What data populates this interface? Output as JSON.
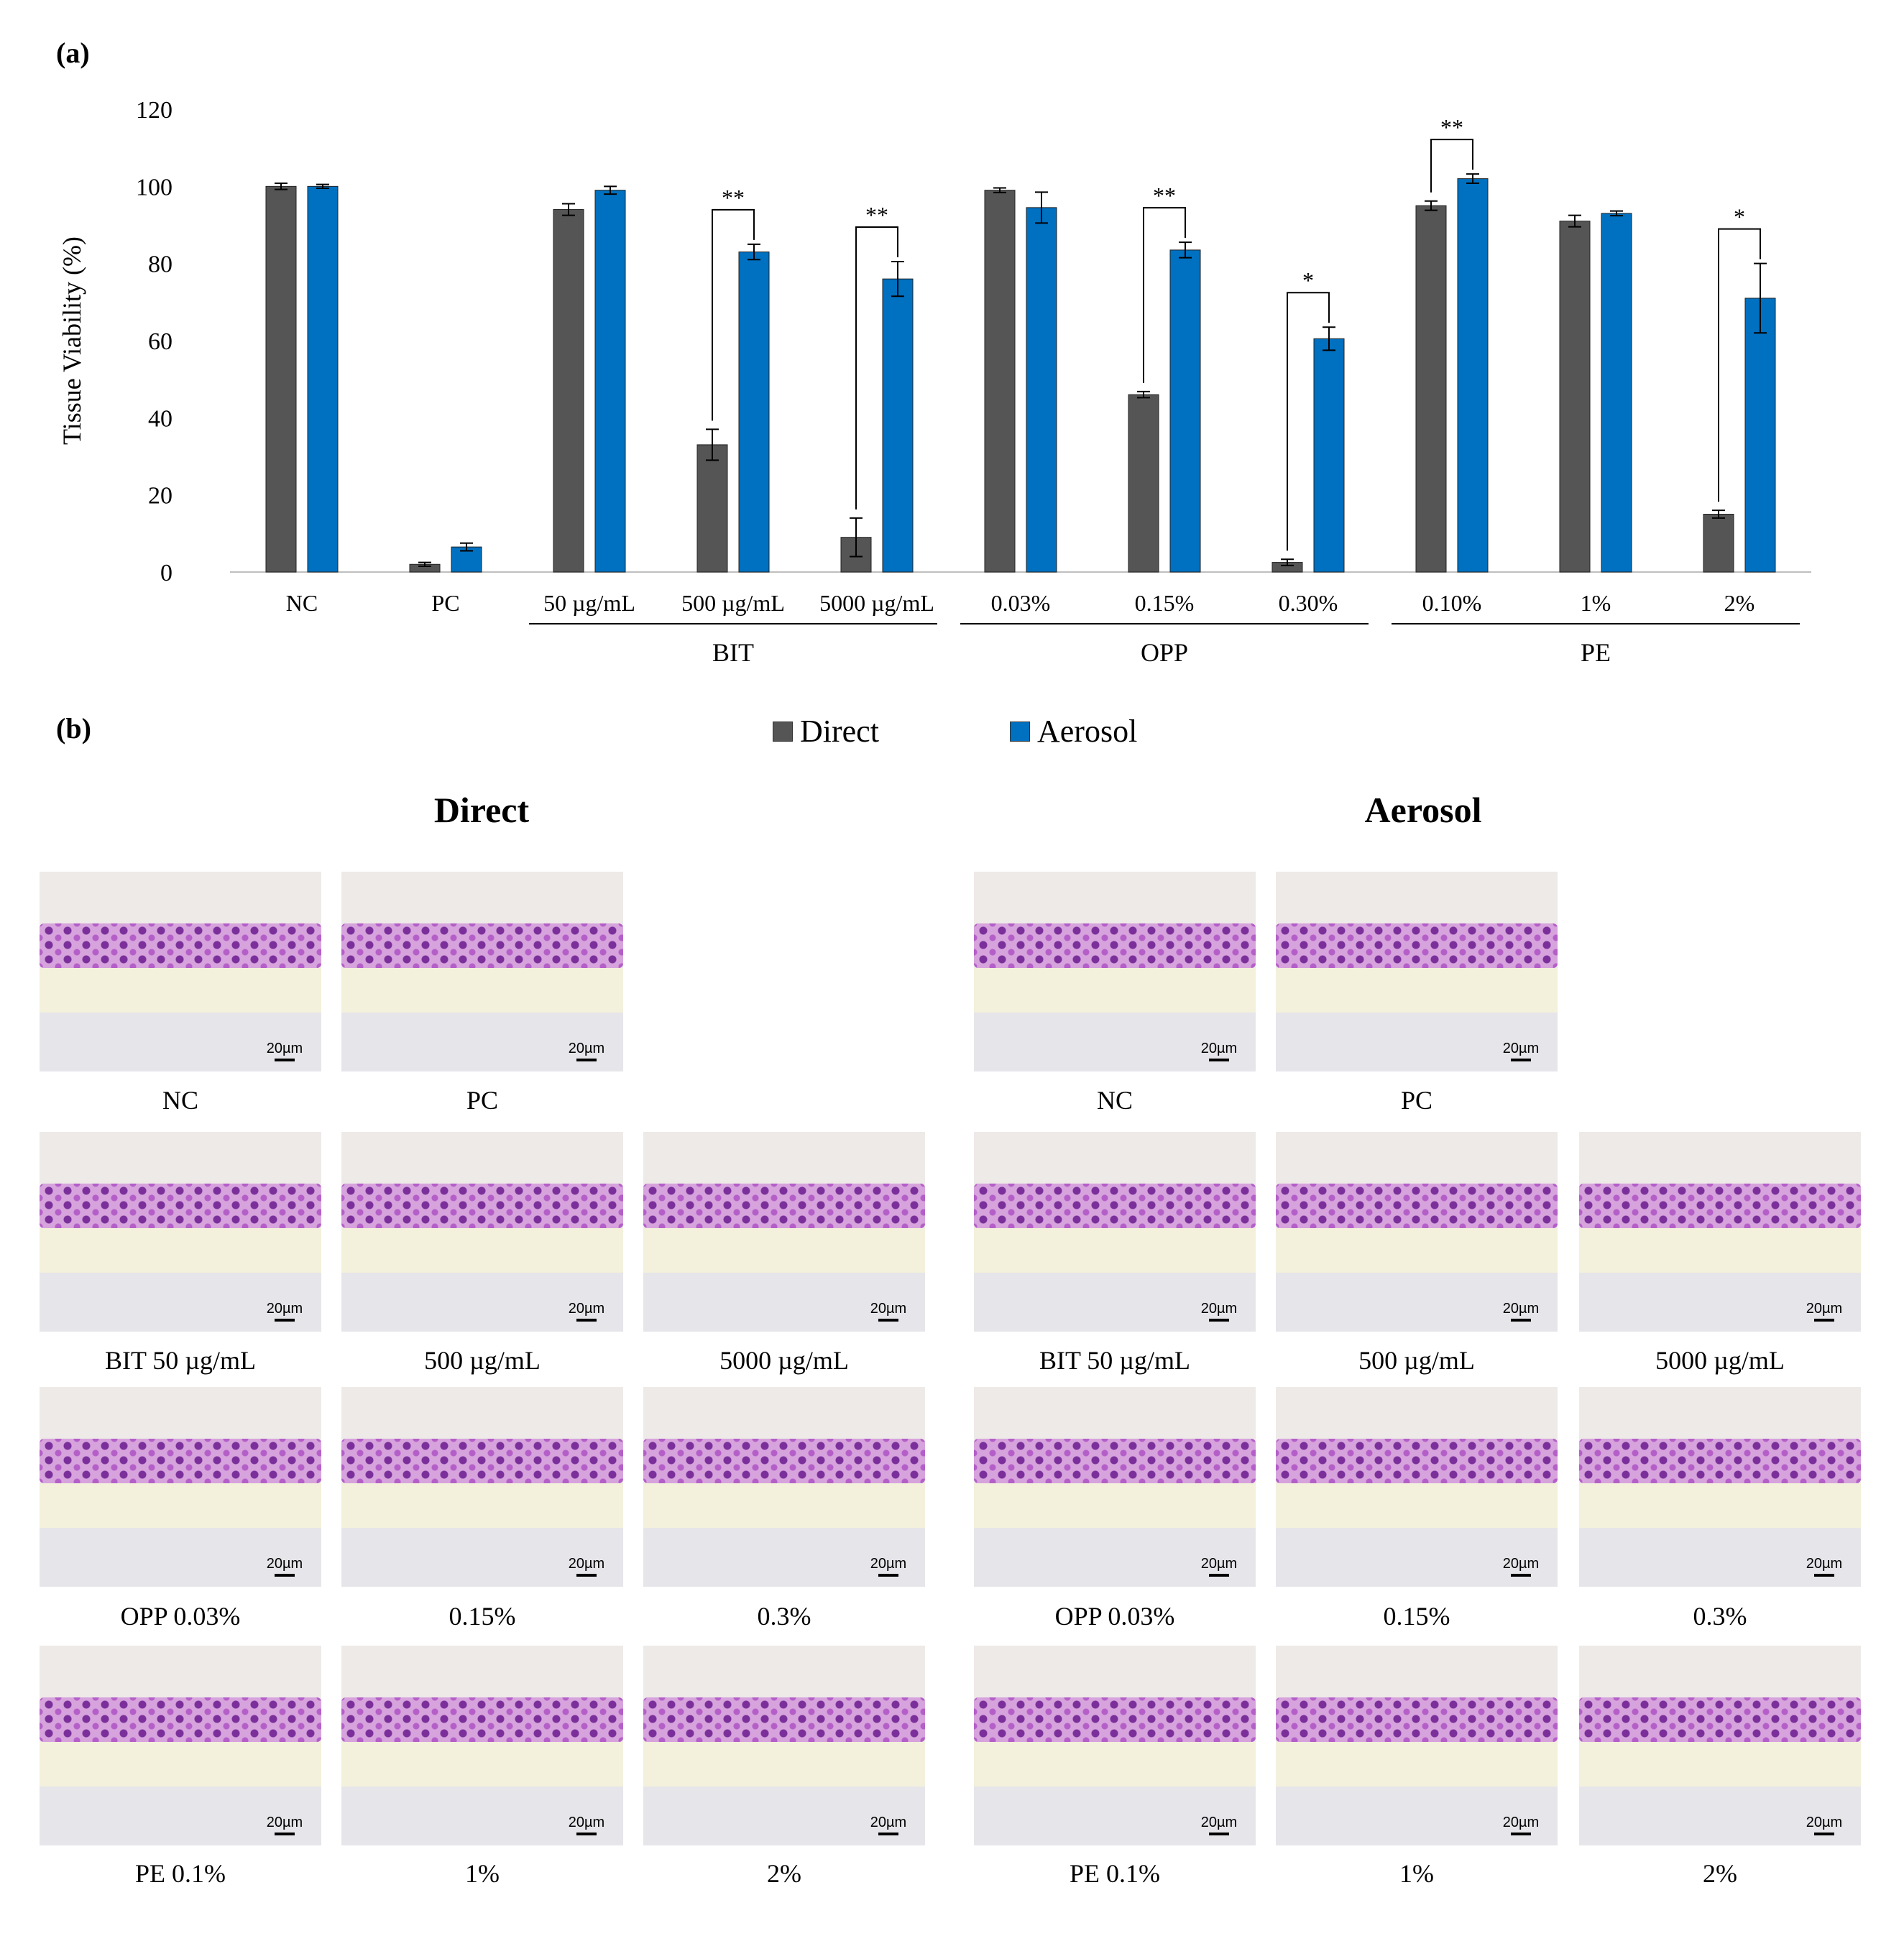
{
  "panel_a_label": "(a)",
  "panel_b_label": "(b)",
  "chart_data": {
    "type": "bar",
    "ylabel": "Tissue Viability  (%)",
    "ylim": [
      0,
      120
    ],
    "yticks": [
      "0",
      "20",
      "40",
      "60",
      "80",
      "100",
      "120"
    ],
    "categories": [
      "NC",
      "PC",
      "50 µg/mL",
      "500 µg/mL",
      "5000 µg/mL",
      "0.03%",
      "0.15%",
      "0.30%",
      "0.10%",
      "1%",
      "2%"
    ],
    "groups": [
      {
        "label": "BIT",
        "from": 2,
        "to": 4
      },
      {
        "label": "OPP",
        "from": 5,
        "to": 7
      },
      {
        "label": "PE",
        "from": 8,
        "to": 10
      }
    ],
    "series": [
      {
        "name": "Direct",
        "color": "#555555",
        "values": [
          100,
          2,
          94,
          33,
          9,
          99,
          46,
          2.5,
          95,
          91,
          15
        ],
        "errors": [
          0.8,
          0.5,
          1.5,
          4,
          5,
          0.6,
          0.8,
          0.8,
          1.2,
          1.5,
          1
        ]
      },
      {
        "name": "Aerosol",
        "color": "#0070c0",
        "values": [
          100,
          6.5,
          99,
          83,
          76,
          94.5,
          83.5,
          60.5,
          102,
          93,
          71
        ],
        "errors": [
          0.5,
          1,
          1,
          2,
          4.5,
          4,
          2,
          3,
          1.2,
          0.6,
          9
        ]
      }
    ],
    "significance": [
      {
        "index": 3,
        "label": "**"
      },
      {
        "index": 4,
        "label": "**"
      },
      {
        "index": 6,
        "label": "**"
      },
      {
        "index": 7,
        "label": "*"
      },
      {
        "index": 8,
        "label": "**"
      },
      {
        "index": 10,
        "label": "*"
      }
    ]
  },
  "legend": {
    "direct": "Direct",
    "aerosol": "Aerosol",
    "direct_color": "#555555",
    "aerosol_color": "#0070c0"
  },
  "micrographs": {
    "direct_title": "Direct",
    "aerosol_title": "Aerosol",
    "scale_label": "20µm",
    "direct_captions": [
      "NC",
      "PC",
      "BIT  50 µg/mL",
      "500 µg/mL",
      "5000 µg/mL",
      "OPP 0.03%",
      "0.15%",
      "0.3%",
      "PE 0.1%",
      "1%",
      "2%"
    ],
    "aerosol_captions": [
      "NC",
      "PC",
      "BIT  50 µg/mL",
      "500 µg/mL",
      "5000 µg/mL",
      "OPP 0.03%",
      "0.15%",
      "0.3%",
      "PE 0.1%",
      "1%",
      "2%"
    ]
  }
}
